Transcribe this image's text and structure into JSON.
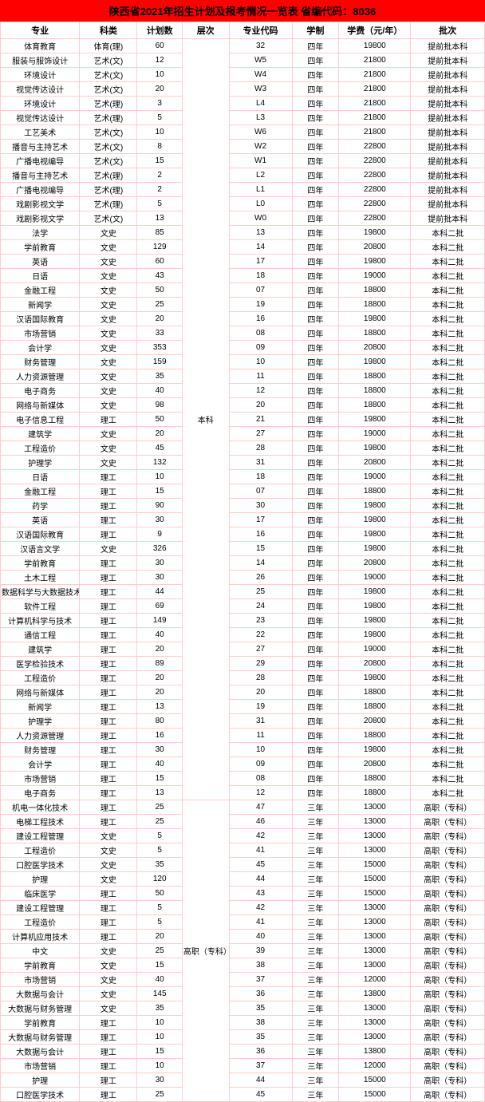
{
  "title": "陕西省2021年招生计划及报考情况一览表  省编代码：8036",
  "columns": [
    "专业",
    "科类",
    "计划数",
    "层次",
    "专业代码",
    "学制",
    "学费（元/年）",
    "批次"
  ],
  "level_groups": [
    {
      "label": "本科",
      "start": 0,
      "span": 53
    },
    {
      "label": "高职（专科）",
      "start": 53,
      "span": 21
    }
  ],
  "rows": [
    {
      "major": "体育教育",
      "cat": "体育(理)",
      "plan": "60",
      "code": "32",
      "dur": "四年",
      "fee": "19800",
      "batch": "提前批本科"
    },
    {
      "major": "服装与服饰设计",
      "cat": "艺术(文)",
      "plan": "12",
      "code": "W5",
      "dur": "四年",
      "fee": "21800",
      "batch": "提前批本科"
    },
    {
      "major": "环境设计",
      "cat": "艺术(文)",
      "plan": "10",
      "code": "W4",
      "dur": "四年",
      "fee": "21800",
      "batch": "提前批本科"
    },
    {
      "major": "视觉传达设计",
      "cat": "艺术(文)",
      "plan": "20",
      "code": "W3",
      "dur": "四年",
      "fee": "21800",
      "batch": "提前批本科"
    },
    {
      "major": "环境设计",
      "cat": "艺术(理)",
      "plan": "3",
      "code": "L4",
      "dur": "四年",
      "fee": "21800",
      "batch": "提前批本科"
    },
    {
      "major": "视觉传达设计",
      "cat": "艺术(理)",
      "plan": "5",
      "code": "L3",
      "dur": "四年",
      "fee": "21800",
      "batch": "提前批本科"
    },
    {
      "major": "工艺美术",
      "cat": "艺术(文)",
      "plan": "10",
      "code": "W6",
      "dur": "四年",
      "fee": "21800",
      "batch": "提前批本科"
    },
    {
      "major": "播音与主持艺术",
      "cat": "艺术(文)",
      "plan": "8",
      "code": "W2",
      "dur": "四年",
      "fee": "22800",
      "batch": "提前批本科"
    },
    {
      "major": "广播电视编导",
      "cat": "艺术(文)",
      "plan": "15",
      "code": "W1",
      "dur": "四年",
      "fee": "22800",
      "batch": "提前批本科"
    },
    {
      "major": "播音与主持艺术",
      "cat": "艺术(理)",
      "plan": "2",
      "code": "L2",
      "dur": "四年",
      "fee": "22800",
      "batch": "提前批本科"
    },
    {
      "major": "广播电视编导",
      "cat": "艺术(理)",
      "plan": "2",
      "code": "L1",
      "dur": "四年",
      "fee": "22800",
      "batch": "提前批本科"
    },
    {
      "major": "戏剧影视文学",
      "cat": "艺术(理)",
      "plan": "5",
      "code": "L0",
      "dur": "四年",
      "fee": "22800",
      "batch": "提前批本科"
    },
    {
      "major": "戏剧影视文学",
      "cat": "艺术(文)",
      "plan": "13",
      "code": "W0",
      "dur": "四年",
      "fee": "22800",
      "batch": "提前批本科"
    },
    {
      "major": "法学",
      "cat": "文史",
      "plan": "85",
      "code": "13",
      "dur": "四年",
      "fee": "19800",
      "batch": "本科二批"
    },
    {
      "major": "学前教育",
      "cat": "文史",
      "plan": "129",
      "code": "14",
      "dur": "四年",
      "fee": "20800",
      "batch": "本科二批"
    },
    {
      "major": "英语",
      "cat": "文史",
      "plan": "60",
      "code": "17",
      "dur": "四年",
      "fee": "19800",
      "batch": "本科二批"
    },
    {
      "major": "日语",
      "cat": "文史",
      "plan": "43",
      "code": "18",
      "dur": "四年",
      "fee": "19000",
      "batch": "本科二批"
    },
    {
      "major": "金融工程",
      "cat": "文史",
      "plan": "50",
      "code": "07",
      "dur": "四年",
      "fee": "18800",
      "batch": "本科二批"
    },
    {
      "major": "新闻学",
      "cat": "文史",
      "plan": "25",
      "code": "19",
      "dur": "四年",
      "fee": "18800",
      "batch": "本科二批"
    },
    {
      "major": "汉语国际教育",
      "cat": "文史",
      "plan": "20",
      "code": "16",
      "dur": "四年",
      "fee": "19800",
      "batch": "本科二批"
    },
    {
      "major": "市场营销",
      "cat": "文史",
      "plan": "33",
      "code": "08",
      "dur": "四年",
      "fee": "18800",
      "batch": "本科二批"
    },
    {
      "major": "会计学",
      "cat": "文史",
      "plan": "353",
      "code": "09",
      "dur": "四年",
      "fee": "20800",
      "batch": "本科二批"
    },
    {
      "major": "财务管理",
      "cat": "文史",
      "plan": "159",
      "code": "10",
      "dur": "四年",
      "fee": "19800",
      "batch": "本科二批"
    },
    {
      "major": "人力资源管理",
      "cat": "文史",
      "plan": "35",
      "code": "11",
      "dur": "四年",
      "fee": "18800",
      "batch": "本科二批"
    },
    {
      "major": "电子商务",
      "cat": "文史",
      "plan": "40",
      "code": "12",
      "dur": "四年",
      "fee": "18800",
      "batch": "本科二批"
    },
    {
      "major": "网络与新媒体",
      "cat": "文史",
      "plan": "98",
      "code": "20",
      "dur": "四年",
      "fee": "18800",
      "batch": "本科二批"
    },
    {
      "major": "电子信息工程",
      "cat": "理工",
      "plan": "50",
      "code": "21",
      "dur": "四年",
      "fee": "19800",
      "batch": "本科二批"
    },
    {
      "major": "建筑学",
      "cat": "文史",
      "plan": "20",
      "code": "27",
      "dur": "四年",
      "fee": "19000",
      "batch": "本科二批"
    },
    {
      "major": "工程造价",
      "cat": "文史",
      "plan": "45",
      "code": "28",
      "dur": "四年",
      "fee": "19800",
      "batch": "本科二批"
    },
    {
      "major": "护理学",
      "cat": "文史",
      "plan": "132",
      "code": "31",
      "dur": "四年",
      "fee": "20800",
      "batch": "本科二批"
    },
    {
      "major": "日语",
      "cat": "理工",
      "plan": "10",
      "code": "18",
      "dur": "四年",
      "fee": "19000",
      "batch": "本科二批"
    },
    {
      "major": "金融工程",
      "cat": "理工",
      "plan": "15",
      "code": "07",
      "dur": "四年",
      "fee": "18800",
      "batch": "本科二批"
    },
    {
      "major": "药学",
      "cat": "理工",
      "plan": "90",
      "code": "30",
      "dur": "四年",
      "fee": "19800",
      "batch": "本科二批"
    },
    {
      "major": "英语",
      "cat": "理工",
      "plan": "30",
      "code": "17",
      "dur": "四年",
      "fee": "19800",
      "batch": "本科二批"
    },
    {
      "major": "汉语国际教育",
      "cat": "理工",
      "plan": "9",
      "code": "16",
      "dur": "四年",
      "fee": "19800",
      "batch": "本科二批"
    },
    {
      "major": "汉语言文学",
      "cat": "文史",
      "plan": "326",
      "code": "15",
      "dur": "四年",
      "fee": "19800",
      "batch": "本科二批"
    },
    {
      "major": "学前教育",
      "cat": "理工",
      "plan": "30",
      "code": "14",
      "dur": "四年",
      "fee": "20800",
      "batch": "本科二批"
    },
    {
      "major": "土木工程",
      "cat": "理工",
      "plan": "30",
      "code": "26",
      "dur": "四年",
      "fee": "19000",
      "batch": "本科二批"
    },
    {
      "major": "数据科学与大数据技术",
      "cat": "理工",
      "plan": "44",
      "code": "25",
      "dur": "四年",
      "fee": "19800",
      "batch": "本科二批"
    },
    {
      "major": "软件工程",
      "cat": "理工",
      "plan": "69",
      "code": "24",
      "dur": "四年",
      "fee": "19800",
      "batch": "本科二批"
    },
    {
      "major": "计算机科学与技术",
      "cat": "理工",
      "plan": "149",
      "code": "23",
      "dur": "四年",
      "fee": "19800",
      "batch": "本科二批"
    },
    {
      "major": "通信工程",
      "cat": "理工",
      "plan": "40",
      "code": "22",
      "dur": "四年",
      "fee": "19800",
      "batch": "本科二批"
    },
    {
      "major": "建筑学",
      "cat": "理工",
      "plan": "20",
      "code": "27",
      "dur": "四年",
      "fee": "19000",
      "batch": "本科二批"
    },
    {
      "major": "医学检验技术",
      "cat": "理工",
      "plan": "89",
      "code": "29",
      "dur": "四年",
      "fee": "20800",
      "batch": "本科二批"
    },
    {
      "major": "工程造价",
      "cat": "理工",
      "plan": "20",
      "code": "28",
      "dur": "四年",
      "fee": "19800",
      "batch": "本科二批"
    },
    {
      "major": "网络与新媒体",
      "cat": "理工",
      "plan": "20",
      "code": "20",
      "dur": "四年",
      "fee": "18800",
      "batch": "本科二批"
    },
    {
      "major": "新闻学",
      "cat": "理工",
      "plan": "13",
      "code": "19",
      "dur": "四年",
      "fee": "18800",
      "batch": "本科二批"
    },
    {
      "major": "护理学",
      "cat": "理工",
      "plan": "80",
      "code": "31",
      "dur": "四年",
      "fee": "20800",
      "batch": "本科二批"
    },
    {
      "major": "人力资源管理",
      "cat": "理工",
      "plan": "16",
      "code": "11",
      "dur": "四年",
      "fee": "18800",
      "batch": "本科二批"
    },
    {
      "major": "财务管理",
      "cat": "理工",
      "plan": "30",
      "code": "10",
      "dur": "四年",
      "fee": "19800",
      "batch": "本科二批"
    },
    {
      "major": "会计学",
      "cat": "理工",
      "plan": "40",
      "code": "09",
      "dur": "四年",
      "fee": "20800",
      "batch": "本科二批"
    },
    {
      "major": "市场营销",
      "cat": "理工",
      "plan": "15",
      "code": "08",
      "dur": "四年",
      "fee": "18800",
      "batch": "本科二批"
    },
    {
      "major": "电子商务",
      "cat": "理工",
      "plan": "13",
      "code": "12",
      "dur": "四年",
      "fee": "18800",
      "batch": "本科二批"
    },
    {
      "major": "机电一体化技术",
      "cat": "理工",
      "plan": "25",
      "code": "47",
      "dur": "三年",
      "fee": "13000",
      "batch": "高职（专科）"
    },
    {
      "major": "电梯工程技术",
      "cat": "理工",
      "plan": "25",
      "code": "46",
      "dur": "三年",
      "fee": "13000",
      "batch": "高职（专科）"
    },
    {
      "major": "建设工程管理",
      "cat": "文史",
      "plan": "5",
      "code": "42",
      "dur": "三年",
      "fee": "13000",
      "batch": "高职（专科）"
    },
    {
      "major": "工程造价",
      "cat": "文史",
      "plan": "5",
      "code": "41",
      "dur": "三年",
      "fee": "13000",
      "batch": "高职（专科）"
    },
    {
      "major": "口腔医学技术",
      "cat": "文史",
      "plan": "35",
      "code": "45",
      "dur": "三年",
      "fee": "15000",
      "batch": "高职（专科）"
    },
    {
      "major": "护理",
      "cat": "文史",
      "plan": "120",
      "code": "44",
      "dur": "三年",
      "fee": "15000",
      "batch": "高职（专科）"
    },
    {
      "major": "临床医学",
      "cat": "理工",
      "plan": "50",
      "code": "43",
      "dur": "三年",
      "fee": "15000",
      "batch": "高职（专科）"
    },
    {
      "major": "建设工程管理",
      "cat": "理工",
      "plan": "5",
      "code": "42",
      "dur": "三年",
      "fee": "13000",
      "batch": "高职（专科）"
    },
    {
      "major": "工程造价",
      "cat": "理工",
      "plan": "5",
      "code": "41",
      "dur": "三年",
      "fee": "13000",
      "batch": "高职（专科）"
    },
    {
      "major": "计算机应用技术",
      "cat": "理工",
      "plan": "20",
      "code": "40",
      "dur": "三年",
      "fee": "13000",
      "batch": "高职（专科）"
    },
    {
      "major": "中文",
      "cat": "文史",
      "plan": "25",
      "code": "39",
      "dur": "三年",
      "fee": "13000",
      "batch": "高职（专科）"
    },
    {
      "major": "学前教育",
      "cat": "文史",
      "plan": "15",
      "code": "38",
      "dur": "三年",
      "fee": "13000",
      "batch": "高职（专科）"
    },
    {
      "major": "市场营销",
      "cat": "文史",
      "plan": "40",
      "code": "37",
      "dur": "三年",
      "fee": "12000",
      "batch": "高职（专科）"
    },
    {
      "major": "大数据与会计",
      "cat": "文史",
      "plan": "145",
      "code": "36",
      "dur": "三年",
      "fee": "13800",
      "batch": "高职（专科）"
    },
    {
      "major": "大数据与财务管理",
      "cat": "文史",
      "plan": "35",
      "code": "35",
      "dur": "三年",
      "fee": "13000",
      "batch": "高职（专科）"
    },
    {
      "major": "学前教育",
      "cat": "理工",
      "plan": "10",
      "code": "38",
      "dur": "三年",
      "fee": "13000",
      "batch": "高职（专科）"
    },
    {
      "major": "大数据与财务管理",
      "cat": "理工",
      "plan": "10",
      "code": "35",
      "dur": "三年",
      "fee": "13000",
      "batch": "高职（专科）"
    },
    {
      "major": "大数据与会计",
      "cat": "理工",
      "plan": "15",
      "code": "36",
      "dur": "三年",
      "fee": "13800",
      "batch": "高职（专科）"
    },
    {
      "major": "市场营销",
      "cat": "理工",
      "plan": "10",
      "code": "37",
      "dur": "三年",
      "fee": "12000",
      "batch": "高职（专科）"
    },
    {
      "major": "护理",
      "cat": "理工",
      "plan": "30",
      "code": "44",
      "dur": "三年",
      "fee": "15000",
      "batch": "高职（专科）"
    },
    {
      "major": "口腔医学技术",
      "cat": "理工",
      "plan": "25",
      "code": "45",
      "dur": "三年",
      "fee": "15000",
      "batch": "高职（专科）"
    }
  ]
}
